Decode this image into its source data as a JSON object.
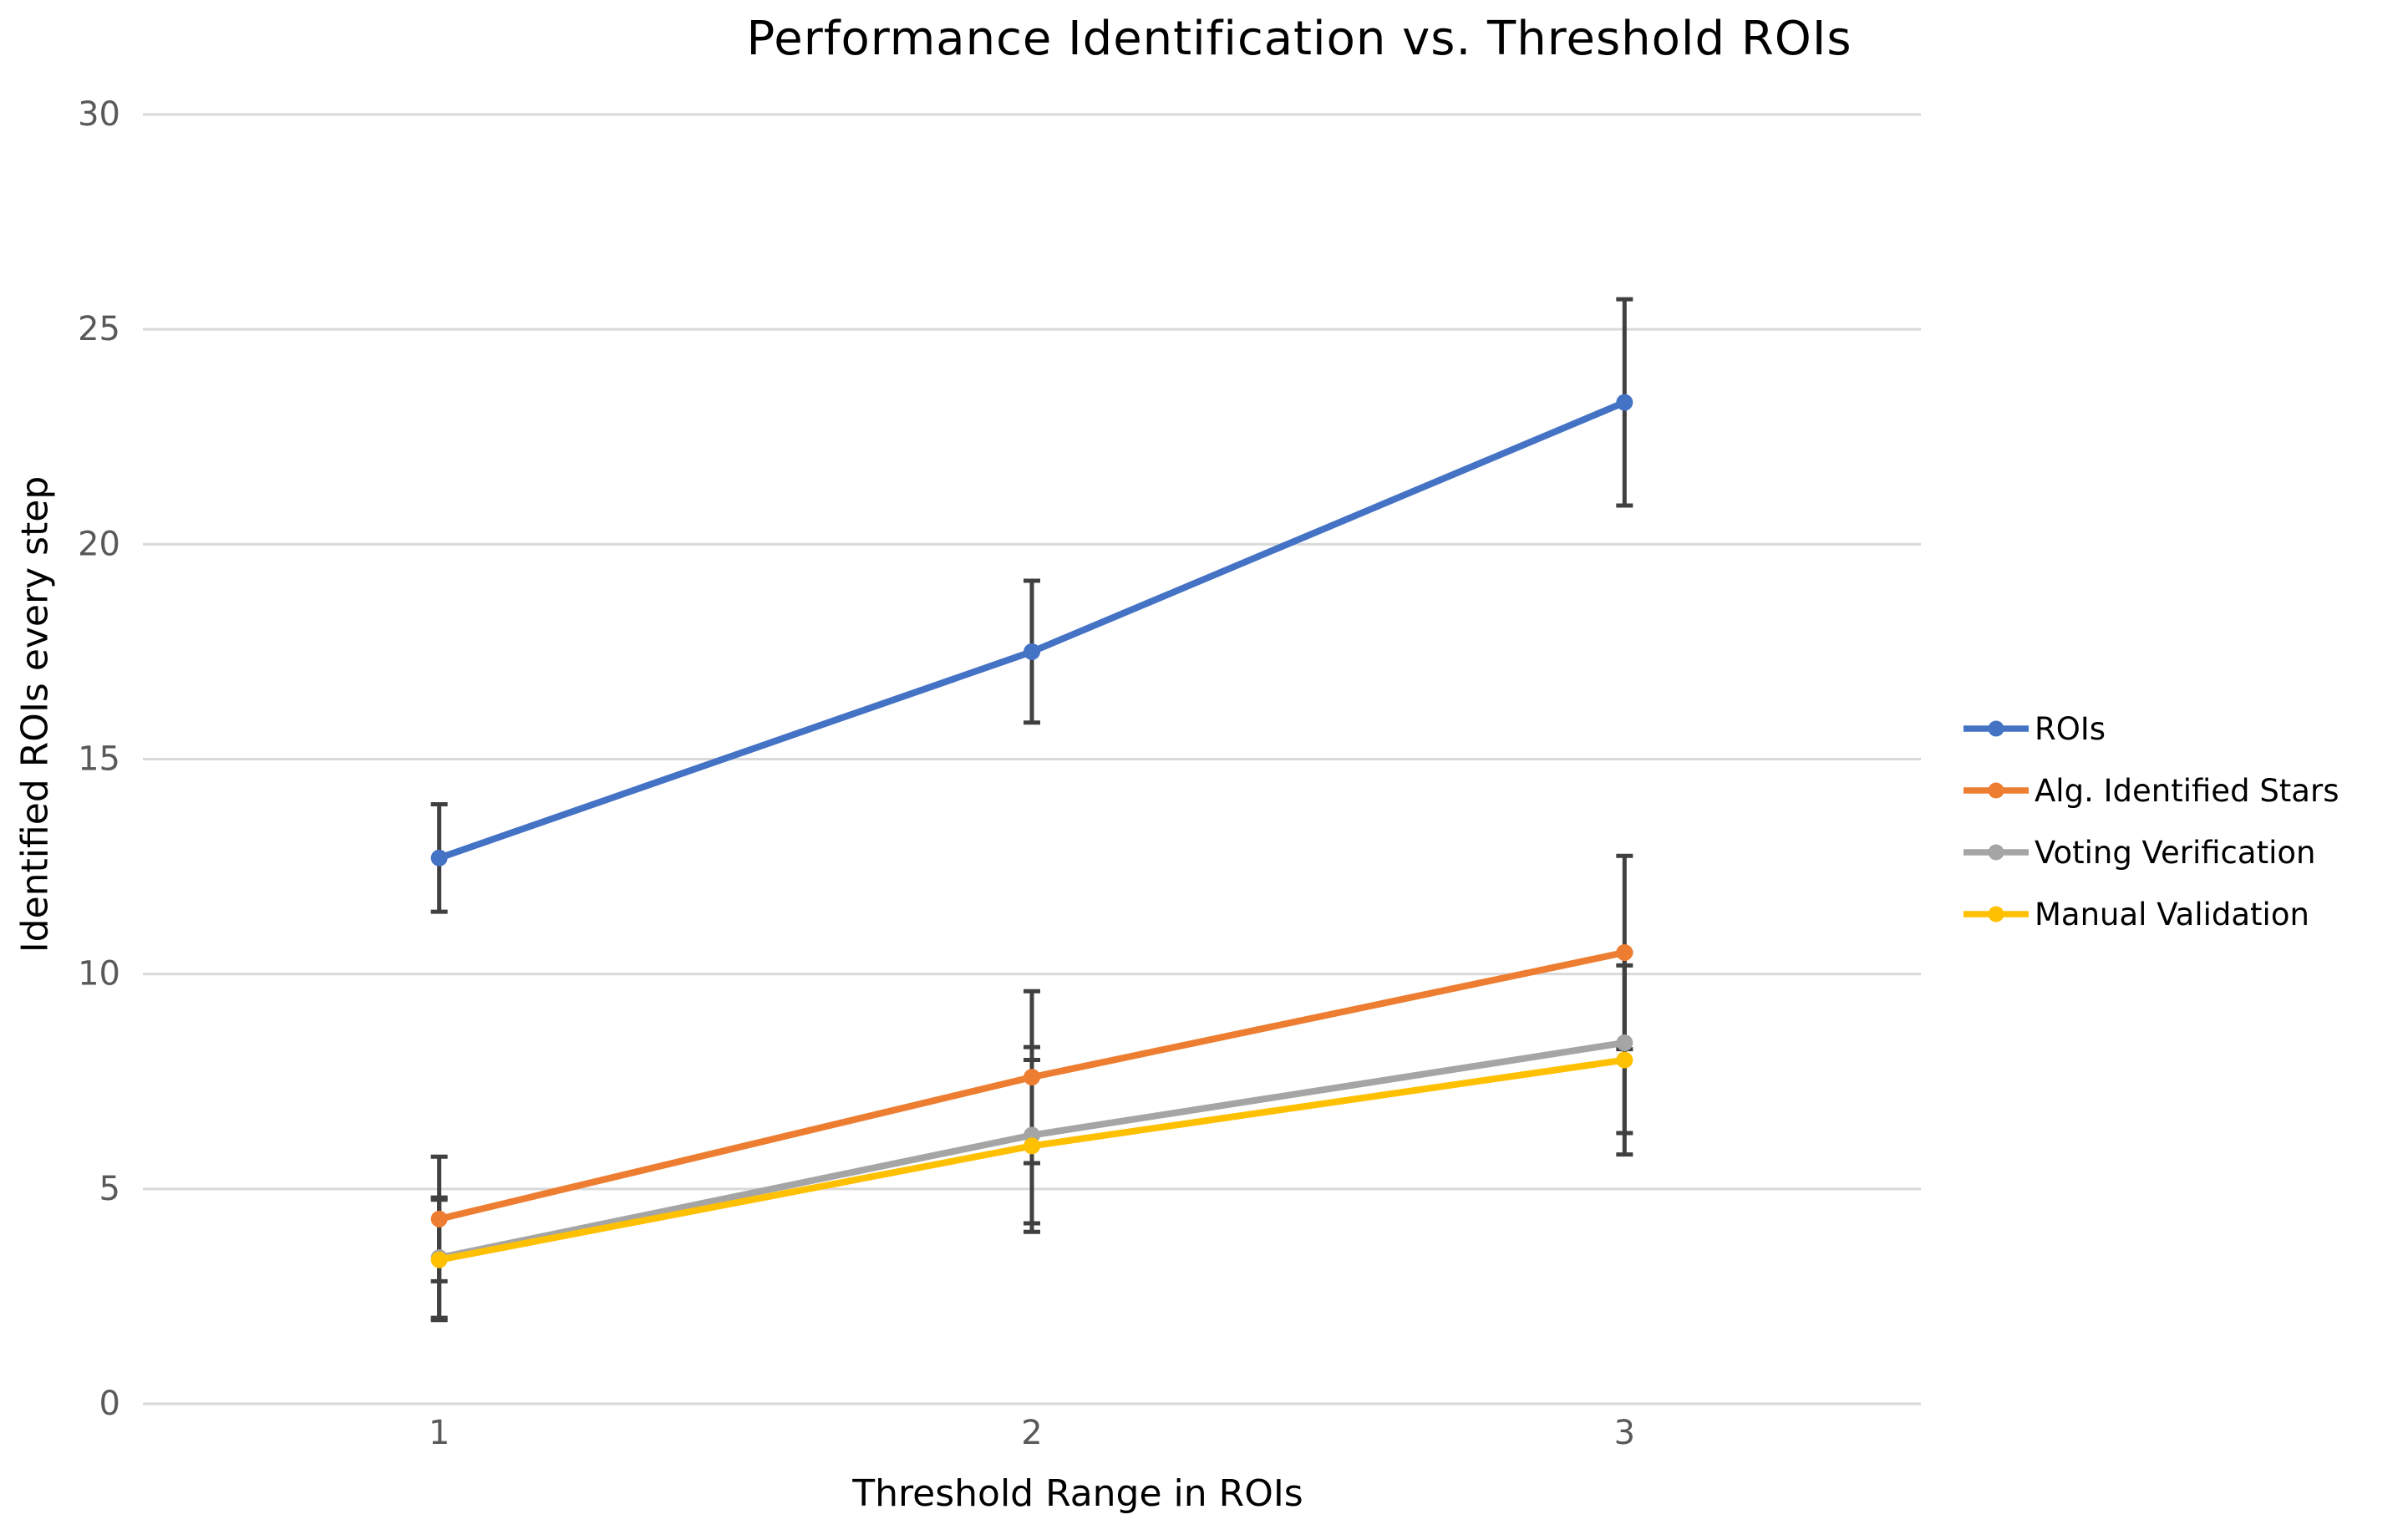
{
  "chart_data": {
    "type": "line",
    "title": "Performance Identification vs. Threshold ROIs",
    "xlabel": "Threshold Range in ROIs",
    "ylabel": "Identified ROIs every step",
    "x_categories": [
      "1",
      "2",
      "3"
    ],
    "ylim": [
      0,
      30
    ],
    "ytick_step": 5,
    "ytick_labels": [
      "0",
      "5",
      "10",
      "15",
      "20",
      "25",
      "30"
    ],
    "grid": "horizontal",
    "legend_position": "right",
    "error_bars": true,
    "series": [
      {
        "name": "ROIs",
        "color": "#4472C4",
        "values": [
          12.7,
          17.5,
          23.3
        ],
        "error": [
          1.25,
          1.65,
          2.4
        ]
      },
      {
        "name": "Alg. Identified Stars",
        "color": "#ED7D31",
        "values": [
          4.3,
          7.6,
          10.5
        ],
        "error": [
          1.45,
          2.0,
          2.25
        ]
      },
      {
        "name": "Voting Verification",
        "color": "#A5A5A5",
        "values": [
          3.4,
          6.25,
          8.4
        ],
        "error": [
          1.4,
          2.05,
          2.1
        ]
      },
      {
        "name": "Manual Validation",
        "color": "#FFC000",
        "values": [
          3.35,
          6.0,
          8.0
        ],
        "error": [
          1.4,
          2.0,
          2.2
        ]
      }
    ],
    "colors": {
      "grid": "#D9D9D9",
      "tick_label": "#595959",
      "error_bar": "#404040",
      "title": "#000000",
      "axis_title": "#000000",
      "legend_text": "#000000",
      "background": "#FFFFFF"
    }
  }
}
